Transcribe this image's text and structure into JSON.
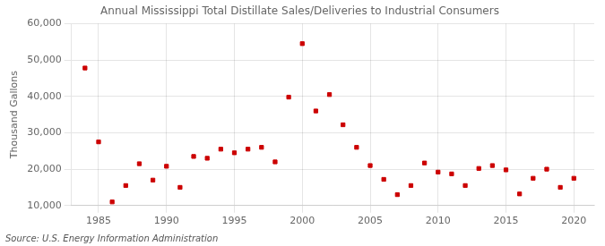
{
  "chart_data": {
    "type": "scatter",
    "title": "Annual Mississippi Total Distillate Sales/Deliveries to Industrial Consumers",
    "ylabel": "Thousand Gallons",
    "annotations": [
      "Source: U.S. Energy Information Administration"
    ],
    "x": [
      1984,
      1985,
      1986,
      1987,
      1988,
      1989,
      1990,
      1991,
      1992,
      1993,
      1994,
      1995,
      1996,
      1997,
      1998,
      1999,
      2000,
      2001,
      2002,
      2003,
      2004,
      2005,
      2006,
      2007,
      2008,
      2009,
      2010,
      2011,
      2012,
      2013,
      2014,
      2015,
      2016,
      2017,
      2018,
      2019,
      2020
    ],
    "values": [
      47800,
      27500,
      11000,
      15500,
      21500,
      17000,
      20800,
      15000,
      23500,
      23000,
      25500,
      24500,
      25500,
      26000,
      22000,
      39800,
      54500,
      36000,
      40500,
      32200,
      26000,
      21000,
      17200,
      13000,
      15500,
      21700,
      19200,
      18700,
      15500,
      20200,
      21000,
      19800,
      13200,
      17500,
      20000,
      15000,
      17500
    ],
    "color": "#cc0000",
    "marker": "square",
    "xlim": [
      1983,
      2021.5
    ],
    "xticks": [
      1985,
      1990,
      1995,
      2000,
      2005,
      2010,
      2015,
      2020
    ],
    "ylim": [
      10000,
      60000
    ],
    "yticks": [
      {
        "value": 10000,
        "label": "10,000"
      },
      {
        "value": 20000,
        "label": "20,000"
      },
      {
        "value": 30000,
        "label": "30,000"
      },
      {
        "value": 40000,
        "label": "40,000"
      },
      {
        "value": 50000,
        "label": "50,000"
      },
      {
        "value": 60000,
        "label": "60,000"
      }
    ],
    "grid": true
  }
}
